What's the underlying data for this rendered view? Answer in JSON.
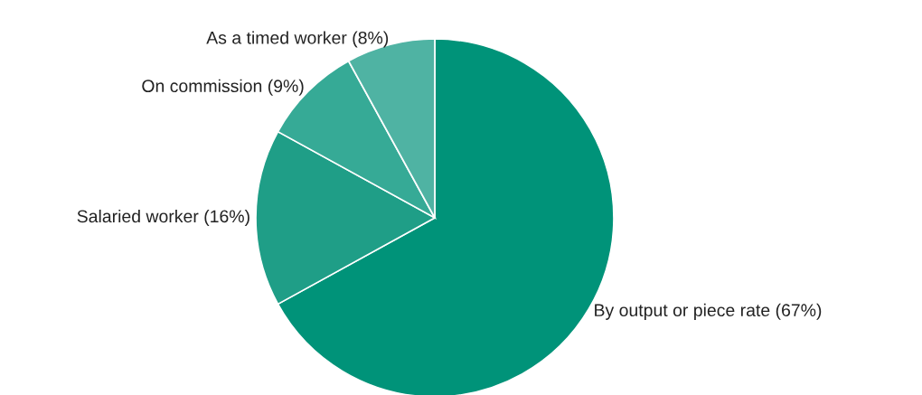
{
  "chart_data": {
    "type": "pie",
    "categories": [
      "By output or piece rate (67%)",
      "Salaried worker (16%)",
      "On commission (9%)",
      "As a timed worker (8%)"
    ],
    "values": [
      67,
      16,
      9,
      8
    ],
    "colors": [
      "#009379",
      "#1f9e87",
      "#36aa96",
      "#4fb3a3"
    ]
  }
}
